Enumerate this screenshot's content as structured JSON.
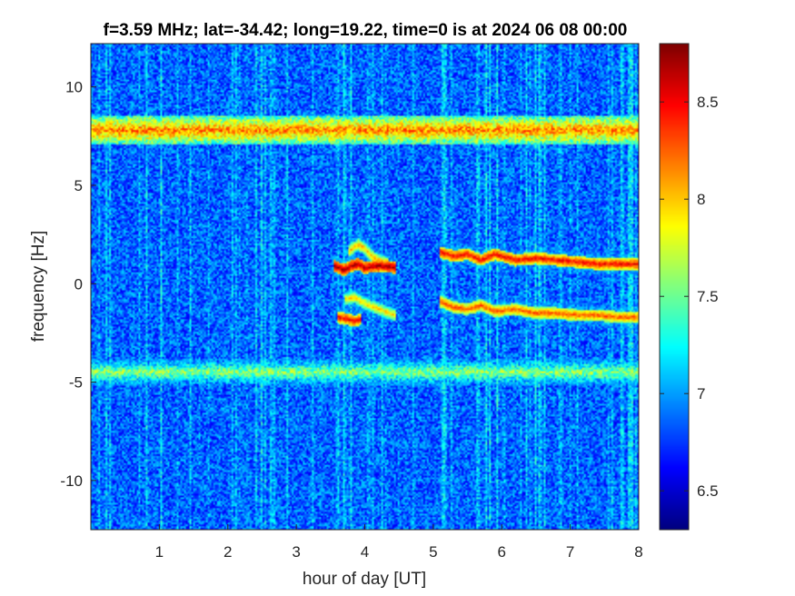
{
  "chart_data": {
    "type": "heatmap",
    "title": "f=3.59 MHz;  lat=-34.42; long=19.22, time=0 is at 2024 06 08 00:00",
    "xlabel": "hour of day [UT]",
    "ylabel": "frequency [Hz]",
    "xlim": [
      0,
      8
    ],
    "ylim": [
      -12.5,
      12.2
    ],
    "x_ticks": [
      1,
      2,
      3,
      4,
      5,
      6,
      7,
      8
    ],
    "x_tick_labels": [
      "1",
      "2",
      "3",
      "4",
      "5",
      "6",
      "7",
      "8"
    ],
    "y_ticks": [
      10,
      5,
      0,
      -5,
      -10
    ],
    "y_tick_labels": [
      "10",
      "5",
      "0",
      "-5",
      "-10"
    ],
    "colorbar": {
      "colormap": "jet",
      "clim": [
        6.3,
        8.8
      ],
      "ticks": [
        6.5,
        7,
        7.5,
        8,
        8.5
      ],
      "tick_labels": [
        "6.5",
        "7",
        "7.5",
        "8",
        "8.5"
      ]
    },
    "background_level": 6.85,
    "horizontal_bands": [
      {
        "frequency_hz": 7.8,
        "x_range": [
          0,
          8
        ],
        "level": 8.2
      },
      {
        "frequency_hz": -4.5,
        "x_range": [
          0,
          8
        ],
        "level": 7.6
      }
    ],
    "doppler_traces": [
      {
        "x": [
          3.55,
          3.7,
          3.8,
          3.9,
          4.0,
          4.15,
          4.3,
          4.45
        ],
        "y": [
          0.9,
          0.7,
          0.9,
          1.0,
          0.8,
          0.9,
          0.9,
          0.8
        ],
        "level": 8.7
      },
      {
        "x": [
          3.75,
          3.9,
          4.0,
          4.1,
          4.2,
          4.35
        ],
        "y": [
          1.6,
          2.0,
          1.8,
          1.4,
          1.2,
          1.0
        ],
        "level": 8.1
      },
      {
        "x": [
          3.7,
          3.85,
          4.0,
          4.2,
          4.45
        ],
        "y": [
          -0.8,
          -0.7,
          -1.0,
          -1.3,
          -1.6
        ],
        "level": 8.0
      },
      {
        "x": [
          3.6,
          3.75,
          3.85,
          3.95
        ],
        "y": [
          -1.7,
          -1.8,
          -1.9,
          -1.8
        ],
        "level": 8.5
      },
      {
        "x": [
          5.1,
          5.3,
          5.5,
          5.7,
          5.9,
          6.2,
          6.5,
          6.8,
          7.1,
          7.4,
          7.7,
          8.0
        ],
        "y": [
          1.6,
          1.4,
          1.5,
          1.2,
          1.5,
          1.2,
          1.3,
          1.2,
          1.1,
          1.0,
          1.0,
          1.0
        ],
        "level": 8.5
      },
      {
        "x": [
          5.1,
          5.3,
          5.5,
          5.7,
          5.9,
          6.2,
          6.5,
          6.8,
          7.1,
          7.4,
          7.7,
          8.0
        ],
        "y": [
          -0.9,
          -1.2,
          -1.3,
          -1.1,
          -1.4,
          -1.3,
          -1.5,
          -1.5,
          -1.6,
          -1.6,
          -1.7,
          -1.7
        ],
        "level": 8.3
      }
    ]
  }
}
